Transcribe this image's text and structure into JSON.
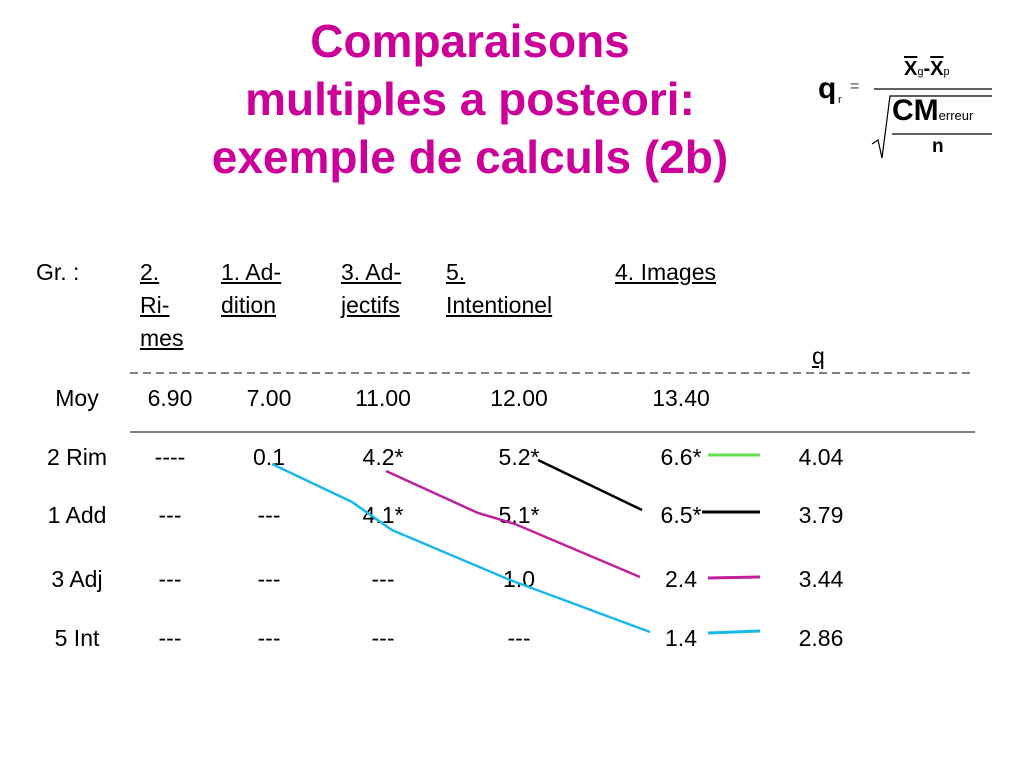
{
  "title": {
    "line1": "Comparaisons",
    "line2": "multiples a posteori:",
    "line3": "exemple de calculs (2b)"
  },
  "formula": {
    "q": "q",
    "r": "r",
    "eq": "=",
    "x": "X",
    "g": "g",
    "minus": "-",
    "p": "p",
    "cm": "CM",
    "erreur": "erreur",
    "n": "n"
  },
  "table": {
    "corner": "Gr. :",
    "headers": [
      {
        "lines": [
          "2.",
          "Ri-",
          "mes"
        ]
      },
      {
        "lines": [
          "1. Ad-",
          "dition"
        ]
      },
      {
        "lines": [
          "3. Ad-",
          "jectifs"
        ]
      },
      {
        "lines": [
          "5.",
          "Intentionel"
        ]
      },
      {
        "lines": [
          "4. Images"
        ]
      }
    ],
    "q_header": "q",
    "mean_row": {
      "label": "Moy",
      "values": [
        "6.90",
        "7.00",
        "11.00",
        "12.00",
        "13.40"
      ]
    },
    "rows": [
      {
        "label": "2 Rim",
        "values": [
          "----",
          "0.1",
          "4.2*",
          "5.2*",
          "6.6*"
        ],
        "q": "4.04"
      },
      {
        "label": "1 Add",
        "values": [
          "---",
          "---",
          "4.1*",
          "5.1*",
          "6.5*"
        ],
        "q": "3.79"
      },
      {
        "label": "3 Adj",
        "values": [
          "---",
          "---",
          "---",
          "1.0",
          "2.4"
        ],
        "q": "3.44"
      },
      {
        "label": "5 Int",
        "values": [
          "---",
          "---",
          "---",
          "---",
          "1.4"
        ],
        "q": "2.86"
      }
    ]
  },
  "colors": {
    "title": "#cc0099",
    "cyan": "#1ab8e8",
    "magenta": "#c0209a",
    "black": "#000000",
    "green": "#66dd55"
  }
}
